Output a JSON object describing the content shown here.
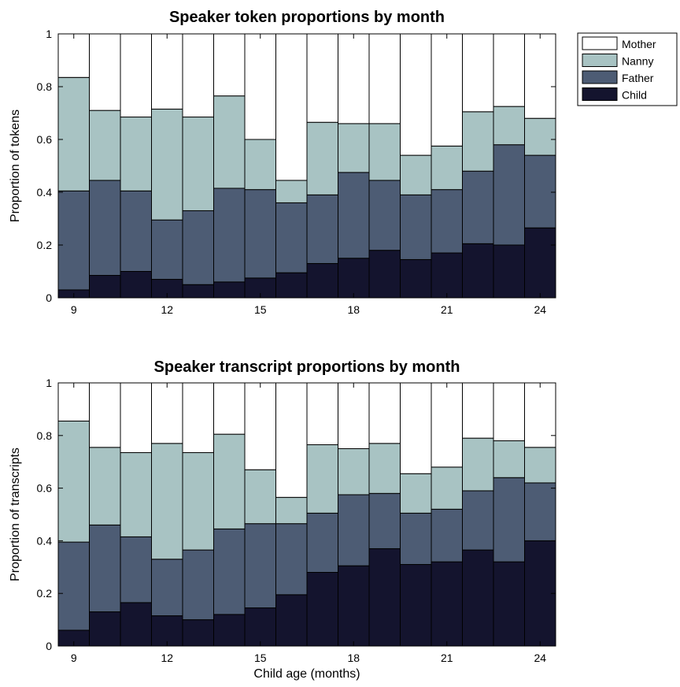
{
  "chart_data": [
    {
      "type": "bar",
      "stacked": true,
      "title": "Speaker token proportions by month",
      "xlabel": "",
      "ylabel": "Proportion of tokens",
      "categories": [
        9,
        10,
        11,
        12,
        13,
        14,
        15,
        16,
        17,
        18,
        19,
        20,
        21,
        22,
        23,
        24
      ],
      "xticks": [
        9,
        12,
        15,
        18,
        21,
        24
      ],
      "yticks": [
        "0",
        "0.2",
        "0.4",
        "0.6",
        "0.8",
        "1"
      ],
      "ylim": [
        0,
        1
      ],
      "series": [
        {
          "name": "Child",
          "color": "#14142e",
          "values": [
            0.03,
            0.085,
            0.1,
            0.07,
            0.05,
            0.06,
            0.075,
            0.095,
            0.13,
            0.15,
            0.18,
            0.145,
            0.17,
            0.205,
            0.2,
            0.265
          ]
        },
        {
          "name": "Father",
          "color": "#4d5c74",
          "values": [
            0.375,
            0.36,
            0.305,
            0.225,
            0.28,
            0.355,
            0.335,
            0.265,
            0.26,
            0.325,
            0.265,
            0.245,
            0.24,
            0.275,
            0.38,
            0.275
          ]
        },
        {
          "name": "Nanny",
          "color": "#a8c3c3",
          "values": [
            0.43,
            0.265,
            0.28,
            0.42,
            0.355,
            0.35,
            0.19,
            0.085,
            0.275,
            0.185,
            0.215,
            0.15,
            0.165,
            0.225,
            0.145,
            0.14
          ]
        },
        {
          "name": "Mother",
          "color": "#ffffff",
          "values": [
            0.165,
            0.29,
            0.315,
            0.285,
            0.315,
            0.235,
            0.4,
            0.555,
            0.335,
            0.34,
            0.34,
            0.46,
            0.425,
            0.295,
            0.275,
            0.32
          ]
        }
      ],
      "legend": {
        "position": "outside-top-right",
        "order": [
          "Mother",
          "Nanny",
          "Father",
          "Child"
        ]
      },
      "grid": false
    },
    {
      "type": "bar",
      "stacked": true,
      "title": "Speaker transcript proportions by month",
      "xlabel": "Child age (months)",
      "ylabel": "Proportion of transcripts",
      "categories": [
        9,
        10,
        11,
        12,
        13,
        14,
        15,
        16,
        17,
        18,
        19,
        20,
        21,
        22,
        23,
        24
      ],
      "xticks": [
        9,
        12,
        15,
        18,
        21,
        24
      ],
      "yticks": [
        "0",
        "0.2",
        "0.4",
        "0.6",
        "0.8",
        "1"
      ],
      "ylim": [
        0,
        1
      ],
      "series": [
        {
          "name": "Child",
          "color": "#14142e",
          "values": [
            0.06,
            0.13,
            0.165,
            0.115,
            0.1,
            0.12,
            0.145,
            0.195,
            0.28,
            0.305,
            0.37,
            0.31,
            0.32,
            0.365,
            0.32,
            0.4
          ]
        },
        {
          "name": "Father",
          "color": "#4d5c74",
          "values": [
            0.335,
            0.33,
            0.25,
            0.215,
            0.265,
            0.325,
            0.32,
            0.27,
            0.225,
            0.27,
            0.21,
            0.195,
            0.2,
            0.225,
            0.32,
            0.22
          ]
        },
        {
          "name": "Nanny",
          "color": "#a8c3c3",
          "values": [
            0.46,
            0.295,
            0.32,
            0.44,
            0.37,
            0.36,
            0.205,
            0.1,
            0.26,
            0.175,
            0.19,
            0.15,
            0.16,
            0.2,
            0.14,
            0.135
          ]
        },
        {
          "name": "Mother",
          "color": "#ffffff",
          "values": [
            0.145,
            0.245,
            0.265,
            0.23,
            0.265,
            0.195,
            0.33,
            0.435,
            0.235,
            0.25,
            0.23,
            0.345,
            0.32,
            0.21,
            0.22,
            0.245
          ]
        }
      ],
      "grid": false
    }
  ]
}
